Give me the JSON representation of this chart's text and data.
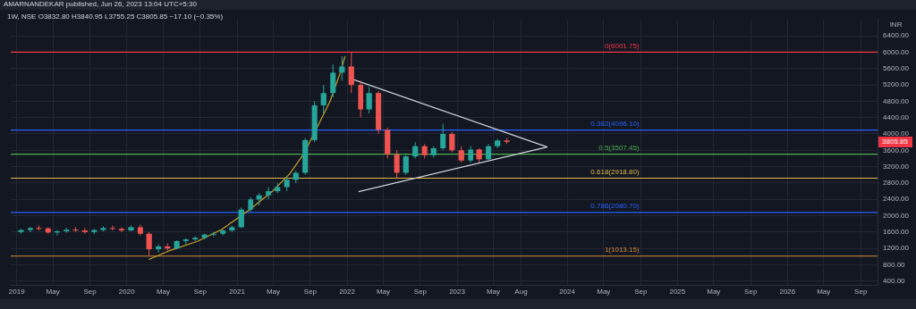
{
  "chart_data": {
    "type": "candlestick",
    "title": "1W, NSE O3832.80 H3840.95 L3755.25 C3805.85 −17.10 (−0.35%)",
    "ylabel": "INR",
    "annotations": [
      "AMARNANDEKAR published, Jun 26, 2023 13:04 UTC+5:30",
      "3805.85"
    ],
    "x": [
      "2019-01-15",
      "2019-02-15",
      "2019-03-15",
      "2019-04-15",
      "2019-05-15",
      "2019-06-15",
      "2019-07-15",
      "2019-08-15",
      "2019-09-15",
      "2019-10-15",
      "2019-11-15",
      "2019-12-15",
      "2020-01-15",
      "2020-02-15",
      "2020-03-15",
      "2020-04-15",
      "2020-05-15",
      "2020-06-15",
      "2020-07-15",
      "2020-08-15",
      "2020-09-15",
      "2020-10-15",
      "2020-11-15",
      "2020-12-15",
      "2021-01-15",
      "2021-02-15",
      "2021-03-15",
      "2021-04-15",
      "2021-05-15",
      "2021-06-15",
      "2021-07-15",
      "2021-08-15",
      "2021-09-15",
      "2021-10-15",
      "2021-11-15",
      "2021-12-15",
      "2022-01-15",
      "2022-02-15",
      "2022-03-15",
      "2022-04-15",
      "2022-05-15",
      "2022-06-15",
      "2022-07-15",
      "2022-08-15",
      "2022-09-15",
      "2022-10-15",
      "2022-11-15",
      "2022-12-15",
      "2023-01-15",
      "2023-02-15",
      "2023-03-15",
      "2023-04-15",
      "2023-05-15",
      "2023-06-15"
    ],
    "ohlc": [
      [
        1600,
        1680,
        1560,
        1650
      ],
      [
        1650,
        1720,
        1600,
        1700
      ],
      [
        1700,
        1760,
        1640,
        1690
      ],
      [
        1690,
        1720,
        1560,
        1590
      ],
      [
        1590,
        1650,
        1520,
        1620
      ],
      [
        1620,
        1700,
        1580,
        1660
      ],
      [
        1660,
        1720,
        1600,
        1640
      ],
      [
        1640,
        1700,
        1560,
        1600
      ],
      [
        1600,
        1680,
        1550,
        1650
      ],
      [
        1650,
        1740,
        1620,
        1700
      ],
      [
        1700,
        1760,
        1640,
        1680
      ],
      [
        1680,
        1720,
        1600,
        1640
      ],
      [
        1640,
        1760,
        1620,
        1720
      ],
      [
        1720,
        1780,
        1520,
        1560
      ],
      [
        1560,
        1600,
        1013.15,
        1180
      ],
      [
        1180,
        1300,
        1100,
        1250
      ],
      [
        1250,
        1320,
        1150,
        1200
      ],
      [
        1200,
        1400,
        1180,
        1380
      ],
      [
        1380,
        1450,
        1300,
        1420
      ],
      [
        1420,
        1500,
        1380,
        1460
      ],
      [
        1460,
        1560,
        1420,
        1540
      ],
      [
        1540,
        1600,
        1480,
        1560
      ],
      [
        1560,
        1660,
        1520,
        1640
      ],
      [
        1640,
        1760,
        1600,
        1720
      ],
      [
        1720,
        2200,
        1700,
        2150
      ],
      [
        2150,
        2450,
        2100,
        2400
      ],
      [
        2400,
        2550,
        2250,
        2500
      ],
      [
        2500,
        2700,
        2400,
        2600
      ],
      [
        2600,
        2800,
        2550,
        2700
      ],
      [
        2700,
        2950,
        2600,
        2880
      ],
      [
        2880,
        3100,
        2800,
        3050
      ],
      [
        3050,
        3900,
        3000,
        3850
      ],
      [
        3850,
        4800,
        3800,
        4700
      ],
      [
        4700,
        5200,
        4500,
        5000
      ],
      [
        5000,
        5700,
        4900,
        5500
      ],
      [
        5500,
        5900,
        5300,
        5650
      ],
      [
        5650,
        6001.75,
        5000,
        5200
      ],
      [
        5200,
        5300,
        4400,
        4600
      ],
      [
        4600,
        5150,
        4500,
        5000
      ],
      [
        5000,
        5050,
        4000,
        4100
      ],
      [
        4100,
        4150,
        3400,
        3500
      ],
      [
        3500,
        3600,
        2920,
        3050
      ],
      [
        3050,
        3500,
        3000,
        3450
      ],
      [
        3450,
        3800,
        3400,
        3700
      ],
      [
        3700,
        3750,
        3400,
        3480
      ],
      [
        3480,
        3700,
        3420,
        3650
      ],
      [
        3650,
        4250,
        3600,
        4000
      ],
      [
        4000,
        4050,
        3550,
        3600
      ],
      [
        3600,
        3700,
        3300,
        3350
      ],
      [
        3350,
        3700,
        3300,
        3620
      ],
      [
        3620,
        3650,
        3300,
        3380
      ],
      [
        3380,
        3750,
        3350,
        3700
      ],
      [
        3700,
        3880,
        3650,
        3840
      ],
      [
        3840,
        3900,
        3755.25,
        3805.85
      ]
    ],
    "colors": [
      "#26a69a",
      "#26a69a",
      "#ef5350",
      "#ef5350",
      "#26a69a",
      "#26a69a",
      "#ef5350",
      "#ef5350",
      "#26a69a",
      "#26a69a",
      "#ef5350",
      "#ef5350",
      "#26a69a",
      "#ef5350",
      "#ef5350",
      "#26a69a",
      "#ef5350",
      "#26a69a",
      "#26a69a",
      "#26a69a",
      "#26a69a",
      "#26a69a",
      "#26a69a",
      "#26a69a",
      "#26a69a",
      "#26a69a",
      "#26a69a",
      "#26a69a",
      "#26a69a",
      "#26a69a",
      "#26a69a",
      "#26a69a",
      "#26a69a",
      "#26a69a",
      "#26a69a",
      "#26a69a",
      "#ef5350",
      "#ef5350",
      "#26a69a",
      "#ef5350",
      "#ef5350",
      "#ef5350",
      "#26a69a",
      "#26a69a",
      "#ef5350",
      "#26a69a",
      "#26a69a",
      "#ef5350",
      "#ef5350",
      "#26a69a",
      "#ef5350",
      "#26a69a",
      "#26a69a",
      "#ef5350"
    ],
    "series": [
      {
        "type": "line",
        "color": "#d1d4dc",
        "x": [
          "2022-01-18",
          "2023-10-27"
        ],
        "values": [
          5340,
          3680
        ]
      },
      {
        "type": "line",
        "color": "#d1d4dc",
        "x": [
          "2022-02-08",
          "2023-10-27"
        ],
        "values": [
          2590,
          3680
        ]
      },
      {
        "type": "line",
        "color": "#c9a227",
        "x": [
          "2020-03-14",
          "2020-05-20",
          "2020-08-24",
          "2020-11-12",
          "2021-02-07",
          "2021-04-27",
          "2021-06-24",
          "2021-08-10",
          "2021-09-28",
          "2021-11-05",
          "2021-12-10",
          "2021-12-25"
        ],
        "values": [
          930,
          1140,
          1380,
          1670,
          2120,
          2590,
          3020,
          3510,
          4230,
          4790,
          5510,
          5900
        ]
      }
    ],
    "ref_lines": [
      {
        "axis": "y",
        "value": 6001.75,
        "label": "0(6001.75)",
        "color": "#f23645"
      },
      {
        "axis": "y",
        "value": 4096.1,
        "label": "0.382(4096.10)",
        "color": "#2962ff"
      },
      {
        "axis": "y",
        "value": 3507.45,
        "label": "0.5(3507.45)",
        "color": "#4caf50"
      },
      {
        "axis": "y",
        "value": 2918.8,
        "label": "0.618(2918.80)",
        "color": "#e0b94a"
      },
      {
        "axis": "y",
        "value": 2080.7,
        "label": "0.786(2080.70)",
        "color": "#2962ff"
      },
      {
        "axis": "y",
        "value": 1013.15,
        "label": "1(1013.15)",
        "color": "#d68a3c"
      }
    ],
    "xlim": [
      "2018-12-12",
      "2026-10-27"
    ],
    "ylim": [
      300,
      6800
    ],
    "xticks": [
      {
        "value": "2019-01-01",
        "label": "2019"
      },
      {
        "value": "2019-05-01",
        "label": "May"
      },
      {
        "value": "2019-09-01",
        "label": "Sep"
      },
      {
        "value": "2020-01-01",
        "label": "2020"
      },
      {
        "value": "2020-05-01",
        "label": "May"
      },
      {
        "value": "2020-09-01",
        "label": "Sep"
      },
      {
        "value": "2021-01-01",
        "label": "2021"
      },
      {
        "value": "2021-05-01",
        "label": "May"
      },
      {
        "value": "2021-09-01",
        "label": "Sep"
      },
      {
        "value": "2022-01-01",
        "label": "2022"
      },
      {
        "value": "2022-05-01",
        "label": "May"
      },
      {
        "value": "2022-09-01",
        "label": "Sep"
      },
      {
        "value": "2023-01-01",
        "label": "2023"
      },
      {
        "value": "2023-05-01",
        "label": "May"
      },
      {
        "value": "2023-08-01",
        "label": "Aug"
      },
      {
        "value": "2024-01-01",
        "label": "2024"
      },
      {
        "value": "2024-05-01",
        "label": "May"
      },
      {
        "value": "2024-09-01",
        "label": "Sep"
      },
      {
        "value": "2025-01-01",
        "label": "2025"
      },
      {
        "value": "2025-05-01",
        "label": "May"
      },
      {
        "value": "2025-09-01",
        "label": "Sep"
      },
      {
        "value": "2026-01-01",
        "label": "2026"
      },
      {
        "value": "2026-05-01",
        "label": "May"
      },
      {
        "value": "2026-09-01",
        "label": "Sep"
      }
    ],
    "yticks": [
      {
        "value": 400,
        "label": "400.00"
      },
      {
        "value": 800,
        "label": "800.00"
      },
      {
        "value": 1200,
        "label": "1200.00"
      },
      {
        "value": 1600,
        "label": "1600.00"
      },
      {
        "value": 2000,
        "label": "2000.00"
      },
      {
        "value": 2400,
        "label": "2400.00"
      },
      {
        "value": 2800,
        "label": "2800.00"
      },
      {
        "value": 3200,
        "label": "3200.00"
      },
      {
        "value": 3600,
        "label": "3600.00"
      },
      {
        "value": 4000,
        "label": "4000.00"
      },
      {
        "value": 4400,
        "label": "4400.00"
      },
      {
        "value": 4800,
        "label": "4800.00"
      },
      {
        "value": 5200,
        "label": "5200.00"
      },
      {
        "value": 5600,
        "label": "5600.00"
      },
      {
        "value": 6000,
        "label": "6000.00"
      },
      {
        "value": 6400,
        "label": "6400.00"
      }
    ],
    "grid": true
  }
}
